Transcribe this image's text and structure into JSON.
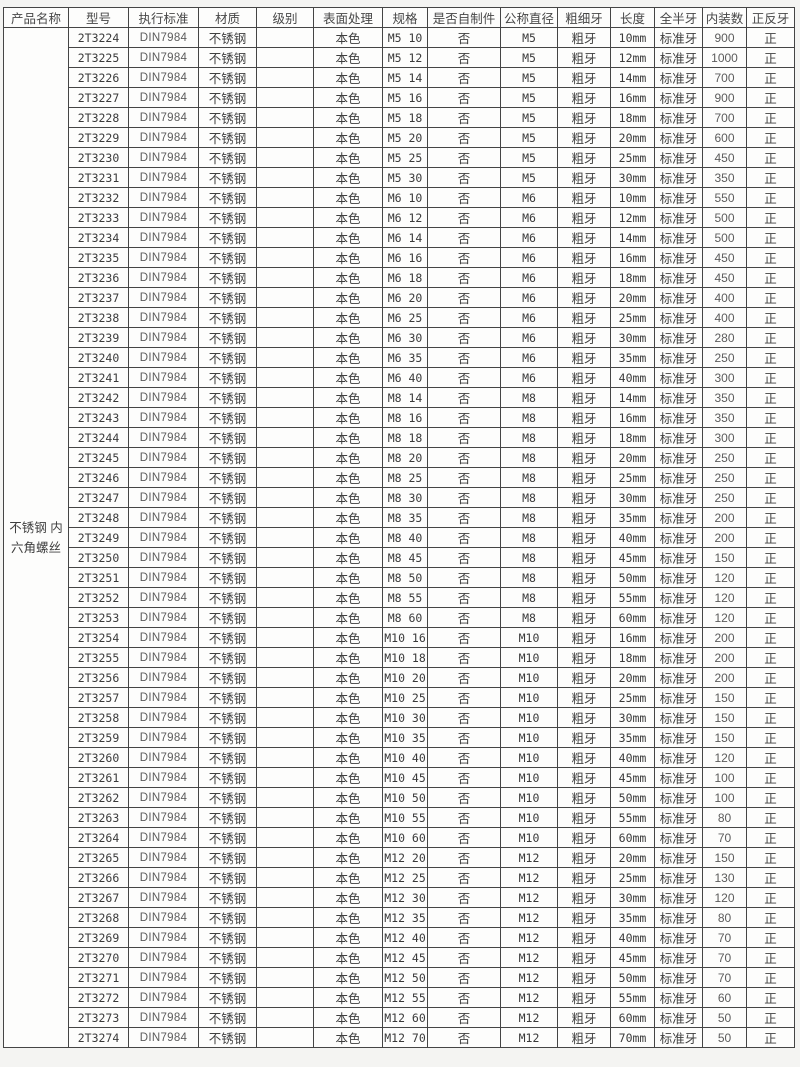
{
  "page": {
    "background_color": "#f4f4f2",
    "cell_background_color": "#fdfdfc",
    "border_color": "#454545",
    "dark_text_color": "#3f3f3f",
    "light_text_color": "#5c5c5c"
  },
  "product": {
    "name": "不锈钢 内六角螺丝",
    "name_display": "不锈钢 内\n六角螺丝"
  },
  "table": {
    "headers": [
      "产品名称",
      "型号",
      "执行标准",
      "材质",
      "级别",
      "表面处理",
      "规格",
      "是否自制件",
      "公称直径",
      "粗细牙",
      "长度",
      "全半牙",
      "内装数",
      "正反牙"
    ],
    "row_constants": {
      "standard": "DIN7984",
      "material": "不锈钢",
      "grade": "",
      "surface": "本色",
      "self_made": "否",
      "thread_pitch": "粗牙",
      "thread_full_half": "标准牙",
      "direction": "正"
    },
    "rows": [
      {
        "model": "2T3224",
        "spec": "M5 10",
        "diameter": "M5",
        "length": "10mm",
        "qty": "900"
      },
      {
        "model": "2T3225",
        "spec": "M5 12",
        "diameter": "M5",
        "length": "12mm",
        "qty": "1000"
      },
      {
        "model": "2T3226",
        "spec": "M5 14",
        "diameter": "M5",
        "length": "14mm",
        "qty": "700"
      },
      {
        "model": "2T3227",
        "spec": "M5 16",
        "diameter": "M5",
        "length": "16mm",
        "qty": "900"
      },
      {
        "model": "2T3228",
        "spec": "M5 18",
        "diameter": "M5",
        "length": "18mm",
        "qty": "700"
      },
      {
        "model": "2T3229",
        "spec": "M5 20",
        "diameter": "M5",
        "length": "20mm",
        "qty": "600"
      },
      {
        "model": "2T3230",
        "spec": "M5 25",
        "diameter": "M5",
        "length": "25mm",
        "qty": "450"
      },
      {
        "model": "2T3231",
        "spec": "M5 30",
        "diameter": "M5",
        "length": "30mm",
        "qty": "350"
      },
      {
        "model": "2T3232",
        "spec": "M6 10",
        "diameter": "M6",
        "length": "10mm",
        "qty": "550"
      },
      {
        "model": "2T3233",
        "spec": "M6 12",
        "diameter": "M6",
        "length": "12mm",
        "qty": "500"
      },
      {
        "model": "2T3234",
        "spec": "M6 14",
        "diameter": "M6",
        "length": "14mm",
        "qty": "500"
      },
      {
        "model": "2T3235",
        "spec": "M6 16",
        "diameter": "M6",
        "length": "16mm",
        "qty": "450"
      },
      {
        "model": "2T3236",
        "spec": "M6 18",
        "diameter": "M6",
        "length": "18mm",
        "qty": "450"
      },
      {
        "model": "2T3237",
        "spec": "M6 20",
        "diameter": "M6",
        "length": "20mm",
        "qty": "400"
      },
      {
        "model": "2T3238",
        "spec": "M6 25",
        "diameter": "M6",
        "length": "25mm",
        "qty": "400"
      },
      {
        "model": "2T3239",
        "spec": "M6 30",
        "diameter": "M6",
        "length": "30mm",
        "qty": "280"
      },
      {
        "model": "2T3240",
        "spec": "M6 35",
        "diameter": "M6",
        "length": "35mm",
        "qty": "250"
      },
      {
        "model": "2T3241",
        "spec": "M6 40",
        "diameter": "M6",
        "length": "40mm",
        "qty": "300"
      },
      {
        "model": "2T3242",
        "spec": "M8 14",
        "diameter": "M8",
        "length": "14mm",
        "qty": "350"
      },
      {
        "model": "2T3243",
        "spec": "M8 16",
        "diameter": "M8",
        "length": "16mm",
        "qty": "350"
      },
      {
        "model": "2T3244",
        "spec": "M8 18",
        "diameter": "M8",
        "length": "18mm",
        "qty": "300"
      },
      {
        "model": "2T3245",
        "spec": "M8 20",
        "diameter": "M8",
        "length": "20mm",
        "qty": "250"
      },
      {
        "model": "2T3246",
        "spec": "M8 25",
        "diameter": "M8",
        "length": "25mm",
        "qty": "250"
      },
      {
        "model": "2T3247",
        "spec": "M8 30",
        "diameter": "M8",
        "length": "30mm",
        "qty": "250"
      },
      {
        "model": "2T3248",
        "spec": "M8 35",
        "diameter": "M8",
        "length": "35mm",
        "qty": "200"
      },
      {
        "model": "2T3249",
        "spec": "M8 40",
        "diameter": "M8",
        "length": "40mm",
        "qty": "200"
      },
      {
        "model": "2T3250",
        "spec": "M8 45",
        "diameter": "M8",
        "length": "45mm",
        "qty": "150"
      },
      {
        "model": "2T3251",
        "spec": "M8 50",
        "diameter": "M8",
        "length": "50mm",
        "qty": "120"
      },
      {
        "model": "2T3252",
        "spec": "M8 55",
        "diameter": "M8",
        "length": "55mm",
        "qty": "120"
      },
      {
        "model": "2T3253",
        "spec": "M8 60",
        "diameter": "M8",
        "length": "60mm",
        "qty": "120"
      },
      {
        "model": "2T3254",
        "spec": "M10 16",
        "diameter": "M10",
        "length": "16mm",
        "qty": "200"
      },
      {
        "model": "2T3255",
        "spec": "M10 18",
        "diameter": "M10",
        "length": "18mm",
        "qty": "200"
      },
      {
        "model": "2T3256",
        "spec": "M10 20",
        "diameter": "M10",
        "length": "20mm",
        "qty": "200"
      },
      {
        "model": "2T3257",
        "spec": "M10 25",
        "diameter": "M10",
        "length": "25mm",
        "qty": "150"
      },
      {
        "model": "2T3258",
        "spec": "M10 30",
        "diameter": "M10",
        "length": "30mm",
        "qty": "150"
      },
      {
        "model": "2T3259",
        "spec": "M10 35",
        "diameter": "M10",
        "length": "35mm",
        "qty": "150"
      },
      {
        "model": "2T3260",
        "spec": "M10 40",
        "diameter": "M10",
        "length": "40mm",
        "qty": "120"
      },
      {
        "model": "2T3261",
        "spec": "M10 45",
        "diameter": "M10",
        "length": "45mm",
        "qty": "100"
      },
      {
        "model": "2T3262",
        "spec": "M10 50",
        "diameter": "M10",
        "length": "50mm",
        "qty": "100"
      },
      {
        "model": "2T3263",
        "spec": "M10 55",
        "diameter": "M10",
        "length": "55mm",
        "qty": "80"
      },
      {
        "model": "2T3264",
        "spec": "M10 60",
        "diameter": "M10",
        "length": "60mm",
        "qty": "70"
      },
      {
        "model": "2T3265",
        "spec": "M12 20",
        "diameter": "M12",
        "length": "20mm",
        "qty": "150"
      },
      {
        "model": "2T3266",
        "spec": "M12 25",
        "diameter": "M12",
        "length": "25mm",
        "qty": "130"
      },
      {
        "model": "2T3267",
        "spec": "M12 30",
        "diameter": "M12",
        "length": "30mm",
        "qty": "120"
      },
      {
        "model": "2T3268",
        "spec": "M12 35",
        "diameter": "M12",
        "length": "35mm",
        "qty": "80"
      },
      {
        "model": "2T3269",
        "spec": "M12 40",
        "diameter": "M12",
        "length": "40mm",
        "qty": "70"
      },
      {
        "model": "2T3270",
        "spec": "M12 45",
        "diameter": "M12",
        "length": "45mm",
        "qty": "70"
      },
      {
        "model": "2T3271",
        "spec": "M12 50",
        "diameter": "M12",
        "length": "50mm",
        "qty": "70"
      },
      {
        "model": "2T3272",
        "spec": "M12 55",
        "diameter": "M12",
        "length": "55mm",
        "qty": "60"
      },
      {
        "model": "2T3273",
        "spec": "M12 60",
        "diameter": "M12",
        "length": "60mm",
        "qty": "50"
      },
      {
        "model": "2T3274",
        "spec": "M12 70",
        "diameter": "M12",
        "length": "70mm",
        "qty": "50"
      }
    ]
  }
}
